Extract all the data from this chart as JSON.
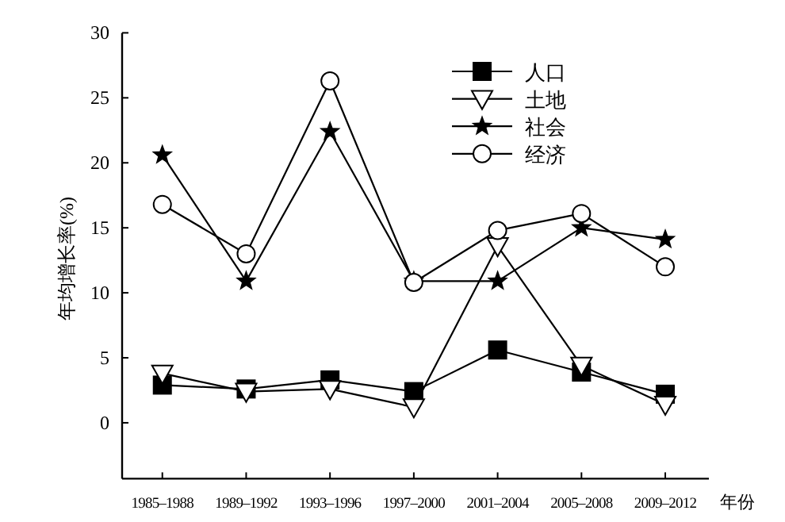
{
  "chart_data": {
    "type": "line",
    "xlabel": "年份",
    "ylabel": "年均增长率(%)",
    "categories": [
      "1985–1988",
      "1989–1992",
      "1993–1996",
      "1997–2000",
      "2001–2004",
      "2005–2008",
      "2009–2012"
    ],
    "series": [
      {
        "name": "人口",
        "color": "#000000",
        "marker": "square",
        "values": [
          2.9,
          2.6,
          3.3,
          2.4,
          5.6,
          3.9,
          2.2
        ]
      },
      {
        "name": "土地",
        "color": "#000000",
        "marker": "triangle",
        "values": [
          3.8,
          2.4,
          2.6,
          1.2,
          13.6,
          4.4,
          1.4
        ]
      },
      {
        "name": "社会",
        "color": "#000000",
        "marker": "star",
        "values": [
          20.6,
          10.9,
          22.4,
          10.9,
          10.9,
          15.0,
          14.1
        ]
      },
      {
        "name": "经济",
        "color": "#000000",
        "marker": "circle",
        "values": [
          16.8,
          13.0,
          26.3,
          10.8,
          14.8,
          16.1,
          12.0
        ]
      }
    ],
    "ylim": [
      -4.3,
      30
    ],
    "yticks": [
      0,
      5,
      10,
      15,
      20,
      25,
      30
    ],
    "grid": false,
    "legend": "top right"
  }
}
